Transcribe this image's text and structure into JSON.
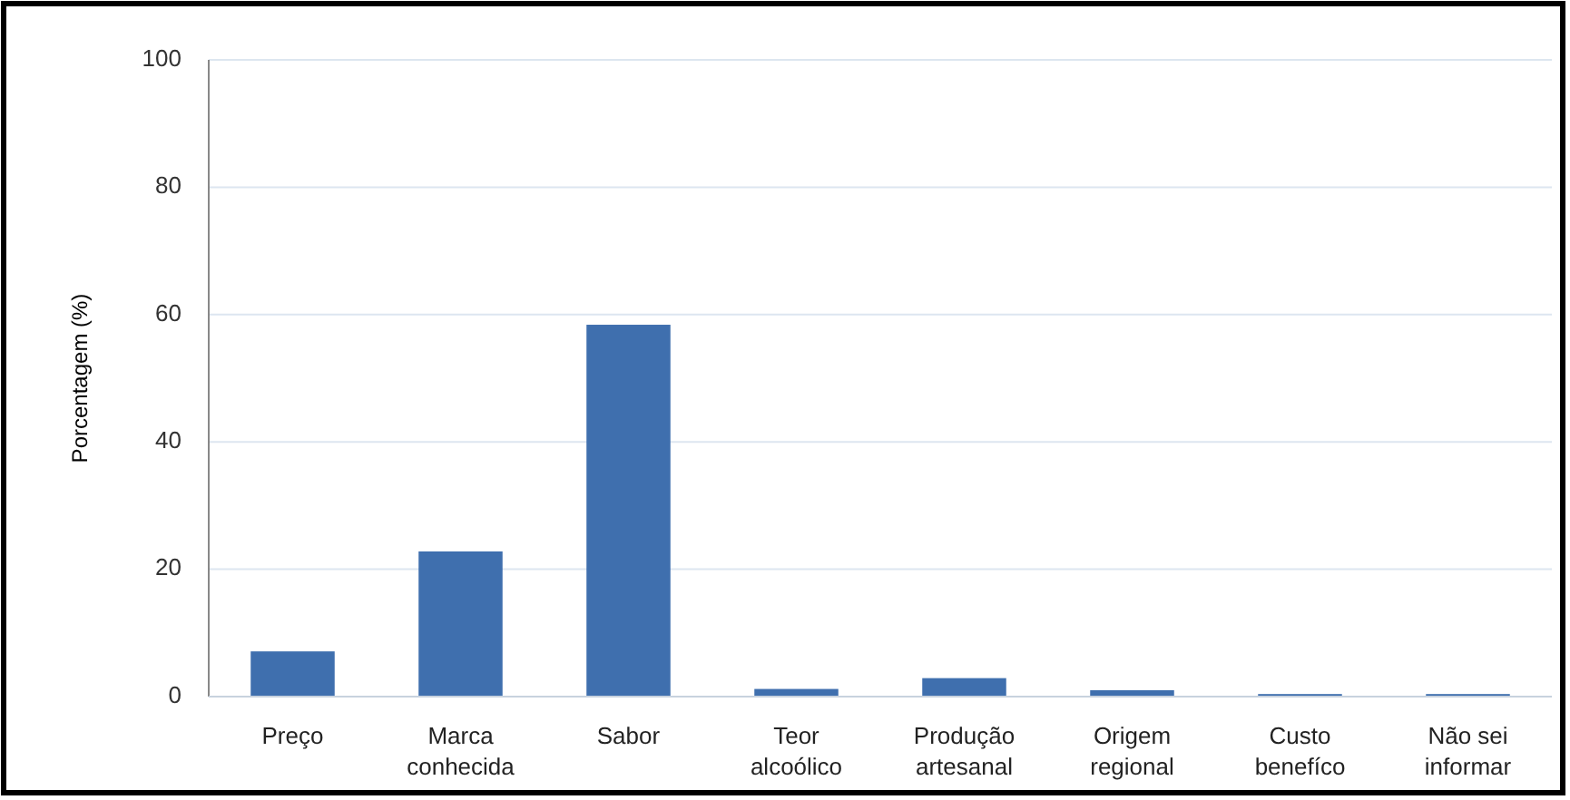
{
  "chart_data": {
    "type": "bar",
    "ylabel": "Porcentagem (%)",
    "categories": [
      "Preço",
      "Marca\nconhecida",
      "Sabor",
      "Teor\nalcoólico",
      "Produção\nartesanal",
      "Origem\nregional",
      "Custo\nbenefíco",
      "Não sei\ninformar"
    ],
    "values": [
      7.1,
      22.8,
      58.4,
      1.2,
      2.9,
      1.0,
      0.4,
      0.4
    ],
    "color": "#3f6fae",
    "ylim": [
      0,
      100
    ],
    "yticks": [
      0,
      20,
      40,
      60,
      80,
      100
    ],
    "grid": "y"
  }
}
